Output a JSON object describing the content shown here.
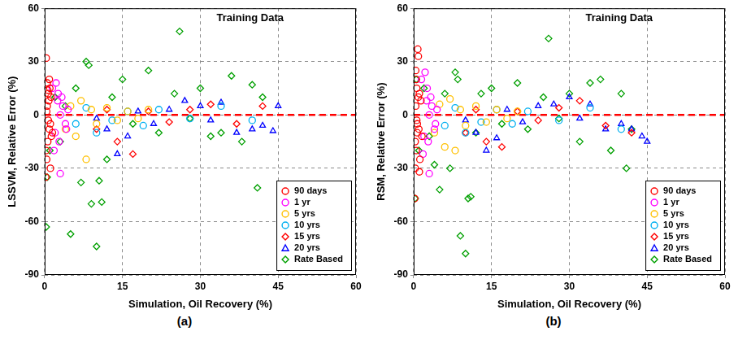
{
  "chart_data": [
    {
      "type": "scatter",
      "title": "Training Data",
      "panel_label": "(a)",
      "x_label": "Simulation, Oil Recovery (%)",
      "y_label": "LSSVM, Relative Error (%)",
      "xlim": [
        0,
        60
      ],
      "xticks": [
        0,
        15,
        30,
        45,
        60
      ],
      "ylim": [
        -90,
        60
      ],
      "yticks": [
        -90,
        -60,
        -30,
        0,
        30,
        60
      ],
      "grid": true,
      "legend": "lower right",
      "reference_line": {
        "y": 0,
        "color": "#ff0000",
        "line_style": "dashed"
      },
      "series": [
        {
          "name": "90 days",
          "color": "#ff0000",
          "marker": "circle",
          "x": [
            0.2,
            0.3,
            0.4,
            0.5,
            0.6,
            0.7,
            0.8,
            0.9,
            1.0,
            1.1,
            1.2,
            1.3,
            0.3,
            0.5,
            0.7,
            0.9,
            1.1,
            0.4,
            0.6,
            1.5
          ],
          "values": [
            -35,
            32,
            -25,
            18,
            -15,
            12,
            8,
            -8,
            15,
            -5,
            10,
            -12,
            -20,
            5,
            -3,
            20,
            -30,
            2,
            14,
            -10
          ]
        },
        {
          "name": "1 yr",
          "color": "#ff00ff",
          "marker": "circle",
          "x": [
            1.5,
            2,
            2.5,
            3,
            3.5,
            4,
            4.5,
            2.2,
            2.8,
            3.3,
            1.8,
            4.2,
            2.6,
            3.0
          ],
          "values": [
            15,
            -10,
            8,
            -33,
            5,
            -5,
            3,
            18,
            -15,
            10,
            -20,
            -8,
            12,
            0
          ]
        },
        {
          "name": "5 yrs",
          "color": "#ffc000",
          "marker": "circle",
          "x": [
            4,
            5,
            6,
            7,
            8,
            9,
            10,
            12,
            14,
            16,
            18,
            20
          ],
          "values": [
            -8,
            5,
            -12,
            8,
            -25,
            3,
            -5,
            4,
            -3,
            2,
            -2,
            3
          ]
        },
        {
          "name": "10 yrs",
          "color": "#00b0f0",
          "marker": "circle",
          "x": [
            6,
            8,
            10,
            13,
            16,
            19,
            22,
            28,
            34,
            40
          ],
          "values": [
            -5,
            4,
            -10,
            -3,
            2,
            -6,
            3,
            -2,
            5,
            -3
          ]
        },
        {
          "name": "15 yrs",
          "color": "#ff0000",
          "marker": "diamond",
          "x": [
            10,
            12,
            14,
            17,
            20,
            24,
            28,
            32,
            37,
            42
          ],
          "values": [
            -8,
            3,
            -15,
            -22,
            2,
            -4,
            3,
            6,
            -5,
            5
          ]
        },
        {
          "name": "20 yrs",
          "color": "#0000ff",
          "marker": "triangle",
          "x": [
            10,
            12,
            14,
            16,
            18,
            21,
            24,
            27,
            30,
            32,
            34,
            37,
            40,
            42,
            44,
            45
          ],
          "values": [
            -2,
            -8,
            -22,
            -12,
            2,
            -5,
            3,
            8,
            5,
            -3,
            7,
            -10,
            -8,
            -6,
            -9,
            5
          ]
        },
        {
          "name": "Rate Based",
          "color": "#00a000",
          "marker": "diamond",
          "x": [
            0.3,
            0.5,
            1,
            2,
            3,
            4,
            5,
            6,
            7,
            8,
            8.5,
            9,
            10,
            10.5,
            11,
            12,
            13,
            15,
            17,
            20,
            22,
            25,
            26,
            28,
            30,
            32,
            34,
            36,
            38,
            40,
            41,
            42
          ],
          "values": [
            -63,
            -35,
            -20,
            10,
            -15,
            5,
            -67,
            15,
            -38,
            30,
            28,
            -50,
            -74,
            -37,
            -49,
            -25,
            10,
            20,
            -5,
            25,
            -10,
            12,
            47,
            -2,
            15,
            -12,
            -10,
            22,
            -15,
            17,
            -41,
            10
          ]
        }
      ]
    },
    {
      "type": "scatter",
      "title": "Training Data",
      "panel_label": "(b)",
      "x_label": "Simulation, Oil Recovery (%)",
      "y_label": "RSM, Relative Error (%)",
      "xlim": [
        0,
        60
      ],
      "xticks": [
        0,
        15,
        30,
        45,
        60
      ],
      "ylim": [
        -90,
        60
      ],
      "yticks": [
        -90,
        -60,
        -30,
        0,
        30,
        60
      ],
      "grid": true,
      "legend": "lower right",
      "reference_line": {
        "y": 0,
        "color": "#ff0000",
        "line_style": "dashed"
      },
      "series": [
        {
          "name": "90 days",
          "color": "#ff0000",
          "marker": "circle",
          "x": [
            0.2,
            0.3,
            0.4,
            0.5,
            0.6,
            0.7,
            0.8,
            0.9,
            1.0,
            1.1,
            1.2,
            1.4,
            0.3,
            0.5,
            0.7,
            0.9,
            1.1,
            0.4,
            0.6,
            1.6
          ],
          "values": [
            -47,
            -30,
            25,
            -20,
            15,
            -10,
            37,
            33,
            -8,
            12,
            -25,
            8,
            -15,
            20,
            -5,
            10,
            -32,
            5,
            -3,
            -12
          ]
        },
        {
          "name": "1 yr",
          "color": "#ff00ff",
          "marker": "circle",
          "x": [
            1.5,
            2,
            2.5,
            3,
            3.5,
            4,
            4.5,
            2.2,
            2.8,
            3.3,
            1.8,
            4.2,
            2.6,
            3.0
          ],
          "values": [
            20,
            -12,
            8,
            -33,
            5,
            -8,
            3,
            24,
            -15,
            10,
            -22,
            -5,
            15,
            0
          ]
        },
        {
          "name": "5 yrs",
          "color": "#ffc000",
          "marker": "circle",
          "x": [
            4,
            5,
            6,
            7,
            8,
            9,
            10,
            12,
            14,
            16,
            18,
            20
          ],
          "values": [
            -10,
            6,
            -18,
            9,
            -20,
            3,
            -6,
            5,
            -4,
            3,
            -2,
            2
          ]
        },
        {
          "name": "10 yrs",
          "color": "#00b0f0",
          "marker": "circle",
          "x": [
            6,
            8,
            10,
            13,
            16,
            19,
            22,
            28,
            34,
            40
          ],
          "values": [
            -6,
            4,
            -10,
            -4,
            3,
            -5,
            2,
            -3,
            4,
            -8
          ]
        },
        {
          "name": "15 yrs",
          "color": "#ff0000",
          "marker": "diamond",
          "x": [
            10,
            12,
            14,
            17,
            20,
            24,
            28,
            32,
            37,
            42
          ],
          "values": [
            -10,
            3,
            -15,
            -18,
            2,
            -3,
            4,
            8,
            -6,
            -10
          ]
        },
        {
          "name": "20 yrs",
          "color": "#0000ff",
          "marker": "triangle",
          "x": [
            10,
            12,
            14,
            16,
            18,
            21,
            24,
            27,
            30,
            32,
            34,
            37,
            40,
            42,
            44,
            45
          ],
          "values": [
            -3,
            -10,
            -20,
            -13,
            3,
            -4,
            5,
            6,
            10,
            -2,
            6,
            -8,
            -5,
            -8,
            -12,
            -15
          ]
        },
        {
          "name": "Rate Based",
          "color": "#00a000",
          "marker": "diamond",
          "x": [
            0.3,
            0.5,
            1,
            2,
            3,
            4,
            5,
            6,
            7,
            8,
            8.5,
            9,
            10,
            10.5,
            11,
            12,
            13,
            15,
            17,
            20,
            22,
            25,
            26,
            28,
            30,
            32,
            34,
            36,
            38,
            40,
            41,
            42
          ],
          "values": [
            -47,
            20,
            -20,
            15,
            -12,
            -28,
            -42,
            12,
            -30,
            24,
            20,
            -68,
            -78,
            -47,
            -46,
            -10,
            12,
            15,
            -5,
            18,
            -8,
            10,
            43,
            -2,
            12,
            -15,
            18,
            20,
            -20,
            12,
            -30,
            -8
          ]
        }
      ]
    }
  ]
}
